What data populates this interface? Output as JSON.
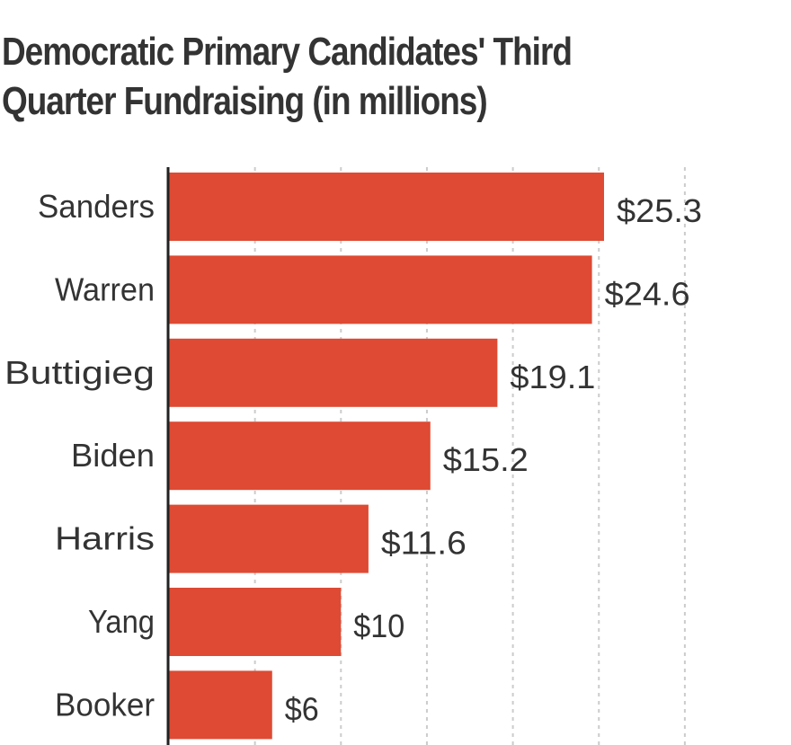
{
  "chart_data": {
    "type": "bar",
    "orientation": "horizontal",
    "title": "Democratic Primary Candidates' Third Quarter Fundraising (in millions)",
    "categories": [
      "Sanders",
      "Warren",
      "Buttigieg",
      "Biden",
      "Harris",
      "Yang",
      "Booker"
    ],
    "values": [
      25.3,
      24.6,
      19.1,
      15.2,
      11.6,
      10,
      6
    ],
    "value_labels": [
      "$25.3",
      "$24.6",
      "$19.1",
      "$15.2",
      "$11.6",
      "$10",
      "$6"
    ],
    "xlim": [
      0,
      30
    ],
    "grid": true,
    "grid_style": "dashed",
    "bar_color": "#de4a33",
    "grid_color": "#cccccc",
    "axis_color": "#222222",
    "text_color": "#333333"
  }
}
